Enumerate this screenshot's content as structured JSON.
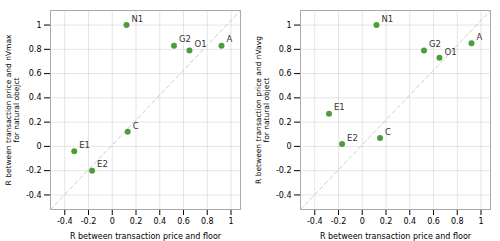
{
  "chart_data": [
    {
      "type": "scatter",
      "xlabel": "R between transaction price and floor",
      "ylabel": "R between transaction price and nVmax\nfor natural obejct",
      "point_labels": [
        "N1",
        "G2",
        "O1",
        "A",
        "C",
        "E1",
        "E2"
      ],
      "x": [
        0.12,
        0.52,
        0.65,
        0.92,
        0.13,
        -0.32,
        -0.17
      ],
      "values": [
        1.0,
        0.83,
        0.79,
        0.83,
        0.12,
        -0.04,
        -0.2
      ],
      "color": "#4d9e3a",
      "xlim": [
        -0.52,
        1.08
      ],
      "ylim": [
        -0.52,
        1.12
      ],
      "xticks": [
        -0.4,
        -0.2,
        0,
        0.2,
        0.4,
        0.6,
        0.8,
        1
      ],
      "yticks": [
        -0.4,
        -0.2,
        0,
        0.2,
        0.4,
        0.6,
        0.8,
        1
      ],
      "grid": true
    },
    {
      "type": "scatter",
      "xlabel": "R between transaction price and floor",
      "ylabel": "R between transaction price and nVavg\nfor natural object",
      "point_labels": [
        "N1",
        "G2",
        "O1",
        "A",
        "C",
        "E1",
        "E2"
      ],
      "x": [
        0.12,
        0.52,
        0.65,
        0.92,
        0.15,
        -0.28,
        -0.17
      ],
      "values": [
        1.0,
        0.79,
        0.73,
        0.85,
        0.07,
        0.27,
        0.02
      ],
      "color": "#4d9e3a",
      "xlim": [
        -0.52,
        1.08
      ],
      "ylim": [
        -0.52,
        1.12
      ],
      "xticks": [
        -0.4,
        -0.2,
        0,
        0.2,
        0.4,
        0.6,
        0.8,
        1
      ],
      "yticks": [
        -0.4,
        -0.2,
        0,
        0.2,
        0.4,
        0.6,
        0.8,
        1
      ],
      "grid": true
    }
  ]
}
